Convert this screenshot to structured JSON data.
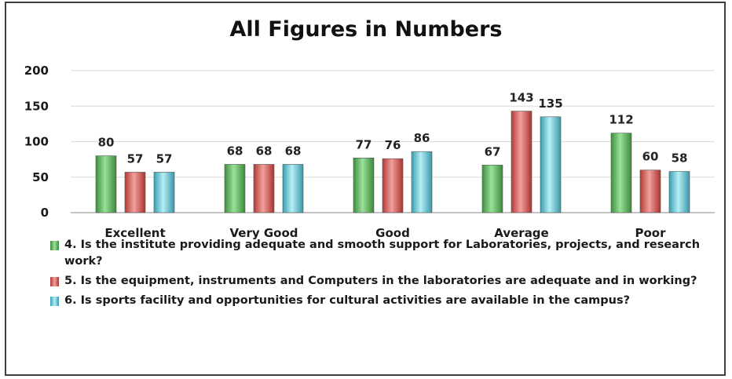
{
  "chart_data": {
    "type": "bar",
    "title": "All Figures in Numbers",
    "categories": [
      "Excellent",
      "Very Good",
      "Good",
      "Average",
      "Poor"
    ],
    "ylim": [
      0,
      200
    ],
    "yticks": [
      0,
      50,
      100,
      150,
      200
    ],
    "grid": true,
    "legend_position": "bottom",
    "series": [
      {
        "name": "4.  Is the institute providing adequate and smooth support for Laboratories, projects, and research work?",
        "color": "#5cb85c",
        "values": [
          80,
          68,
          77,
          67,
          112
        ]
      },
      {
        "name": "5.  Is the equipment, instruments and Computers in the laboratories are adequate and in working?",
        "color": "#d9534f",
        "values": [
          57,
          68,
          76,
          143,
          60
        ]
      },
      {
        "name": "6.  Is sports facility and opportunities for cultural activities are available in the campus?",
        "color": "#5bc8d8",
        "values": [
          57,
          68,
          86,
          135,
          58
        ]
      }
    ]
  }
}
